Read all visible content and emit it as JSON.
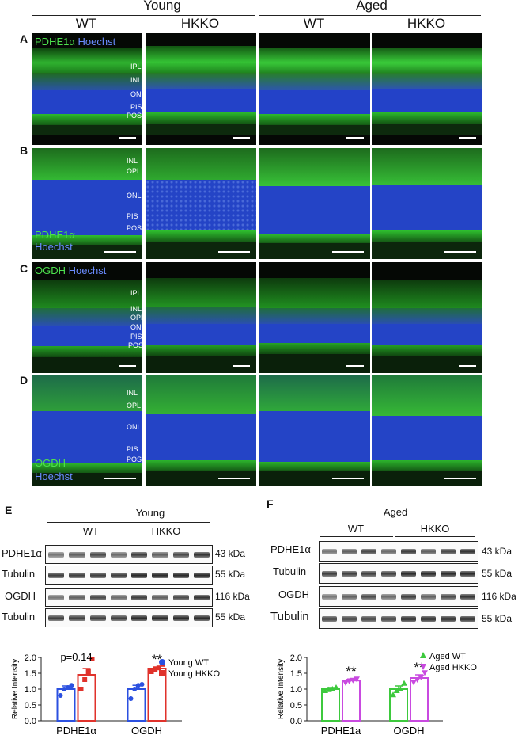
{
  "figure": {
    "group_young": "Young",
    "group_aged": "Aged",
    "genotypes": [
      "WT",
      "HKKO",
      "WT",
      "HKKO"
    ],
    "panels": [
      {
        "letter": "A",
        "stain_a": "PDHE1α",
        "stain_b": "Hoechst",
        "layers": [
          "IPL",
          "INL",
          "ONL",
          "PIS",
          "POS"
        ]
      },
      {
        "letter": "B",
        "stain_a": "PDHE1α",
        "stain_b": "Hoechst",
        "layers": [
          "INL",
          "OPL",
          "ONL",
          "PIS",
          "POS"
        ]
      },
      {
        "letter": "C",
        "stain_a": "OGDH",
        "stain_b": "Hoechst",
        "layers": [
          "IPL",
          "INL",
          "OPL",
          "ONL",
          "PIS",
          "POS"
        ]
      },
      {
        "letter": "D",
        "stain_a": "OGDH",
        "stain_b": "Hoechst",
        "layers": [
          "INL",
          "OPL",
          "ONL",
          "PIS",
          "POS"
        ]
      }
    ],
    "colors": {
      "green": "#3ad13a",
      "blue": "#2f4fd6"
    }
  },
  "western_e": {
    "letter": "E",
    "title": "Young",
    "wt": "WT",
    "hkko": "HKKO",
    "rows": [
      {
        "label": "PDHE1α",
        "kda": "43 kDa"
      },
      {
        "label": "Tubulin",
        "kda": "55 kDa"
      },
      {
        "label": "OGDH",
        "kda": "116 kDa"
      },
      {
        "label": "Tubulin",
        "kda": "55 kDa"
      }
    ]
  },
  "western_f": {
    "letter": "F",
    "title": "Aged",
    "wt": "WT",
    "hkko": "HKKO",
    "rows": [
      {
        "label": "PDHE1α",
        "kda": "43 kDa"
      },
      {
        "label": "Tubulin",
        "kda": "55 kDa"
      },
      {
        "label": "OGDH",
        "kda": "116 kDa"
      },
      {
        "label": "Tubulin",
        "kda": "55 kDa"
      }
    ]
  },
  "chart_data": [
    {
      "type": "bar",
      "ylabel": "Relative Intensity",
      "ylim": [
        0,
        2.0
      ],
      "yticks": [
        "0.0",
        "0.5",
        "1.0",
        "1.5",
        "2.0"
      ],
      "categories": [
        "PDHE1α",
        "OGDH"
      ],
      "series": [
        {
          "name": "Young WT",
          "color": "#2b50e0",
          "values": [
            1.0,
            1.0
          ],
          "sem": [
            0.1,
            0.12
          ],
          "points": [
            [
              0.8,
              1.0,
              1.05,
              1.12
            ],
            [
              0.7,
              1.0,
              1.12,
              1.15
            ]
          ]
        },
        {
          "name": "Young HKKO",
          "color": "#e0322b",
          "values": [
            1.45,
            1.65
          ],
          "sem": [
            0.2,
            0.05
          ],
          "points": [
            [
              1.0,
              1.3,
              1.55,
              1.95
            ],
            [
              1.55,
              1.62,
              1.67,
              1.78
            ]
          ]
        }
      ],
      "annotations": [
        {
          "category": "PDHE1α",
          "text": "p=0.14"
        },
        {
          "category": "OGDH",
          "text": "**"
        }
      ]
    },
    {
      "type": "bar",
      "ylabel": "Relative Intensity",
      "ylim": [
        0,
        2.0
      ],
      "yticks": [
        "0.0",
        "0.5",
        "1.0",
        "1.5",
        "2.0"
      ],
      "categories": [
        "PDHE1a",
        "OGDH"
      ],
      "series": [
        {
          "name": "Aged WT",
          "color": "#3dc93d",
          "values": [
            1.0,
            1.0
          ],
          "sem": [
            0.05,
            0.1
          ],
          "points": [
            [
              0.95,
              0.98,
              1.0,
              1.05
            ],
            [
              0.82,
              0.95,
              1.0,
              1.18
            ]
          ]
        },
        {
          "name": "Aged HKKO",
          "color": "#c94ae0",
          "values": [
            1.27,
            1.35
          ],
          "sem": [
            0.05,
            0.1
          ],
          "points": [
            [
              1.2,
              1.25,
              1.28,
              1.32
            ],
            [
              1.22,
              1.3,
              1.38,
              1.52
            ]
          ]
        }
      ],
      "annotations": [
        {
          "category": "PDHE1a",
          "text": "**"
        },
        {
          "category": "OGDH",
          "text": "**"
        }
      ]
    }
  ]
}
